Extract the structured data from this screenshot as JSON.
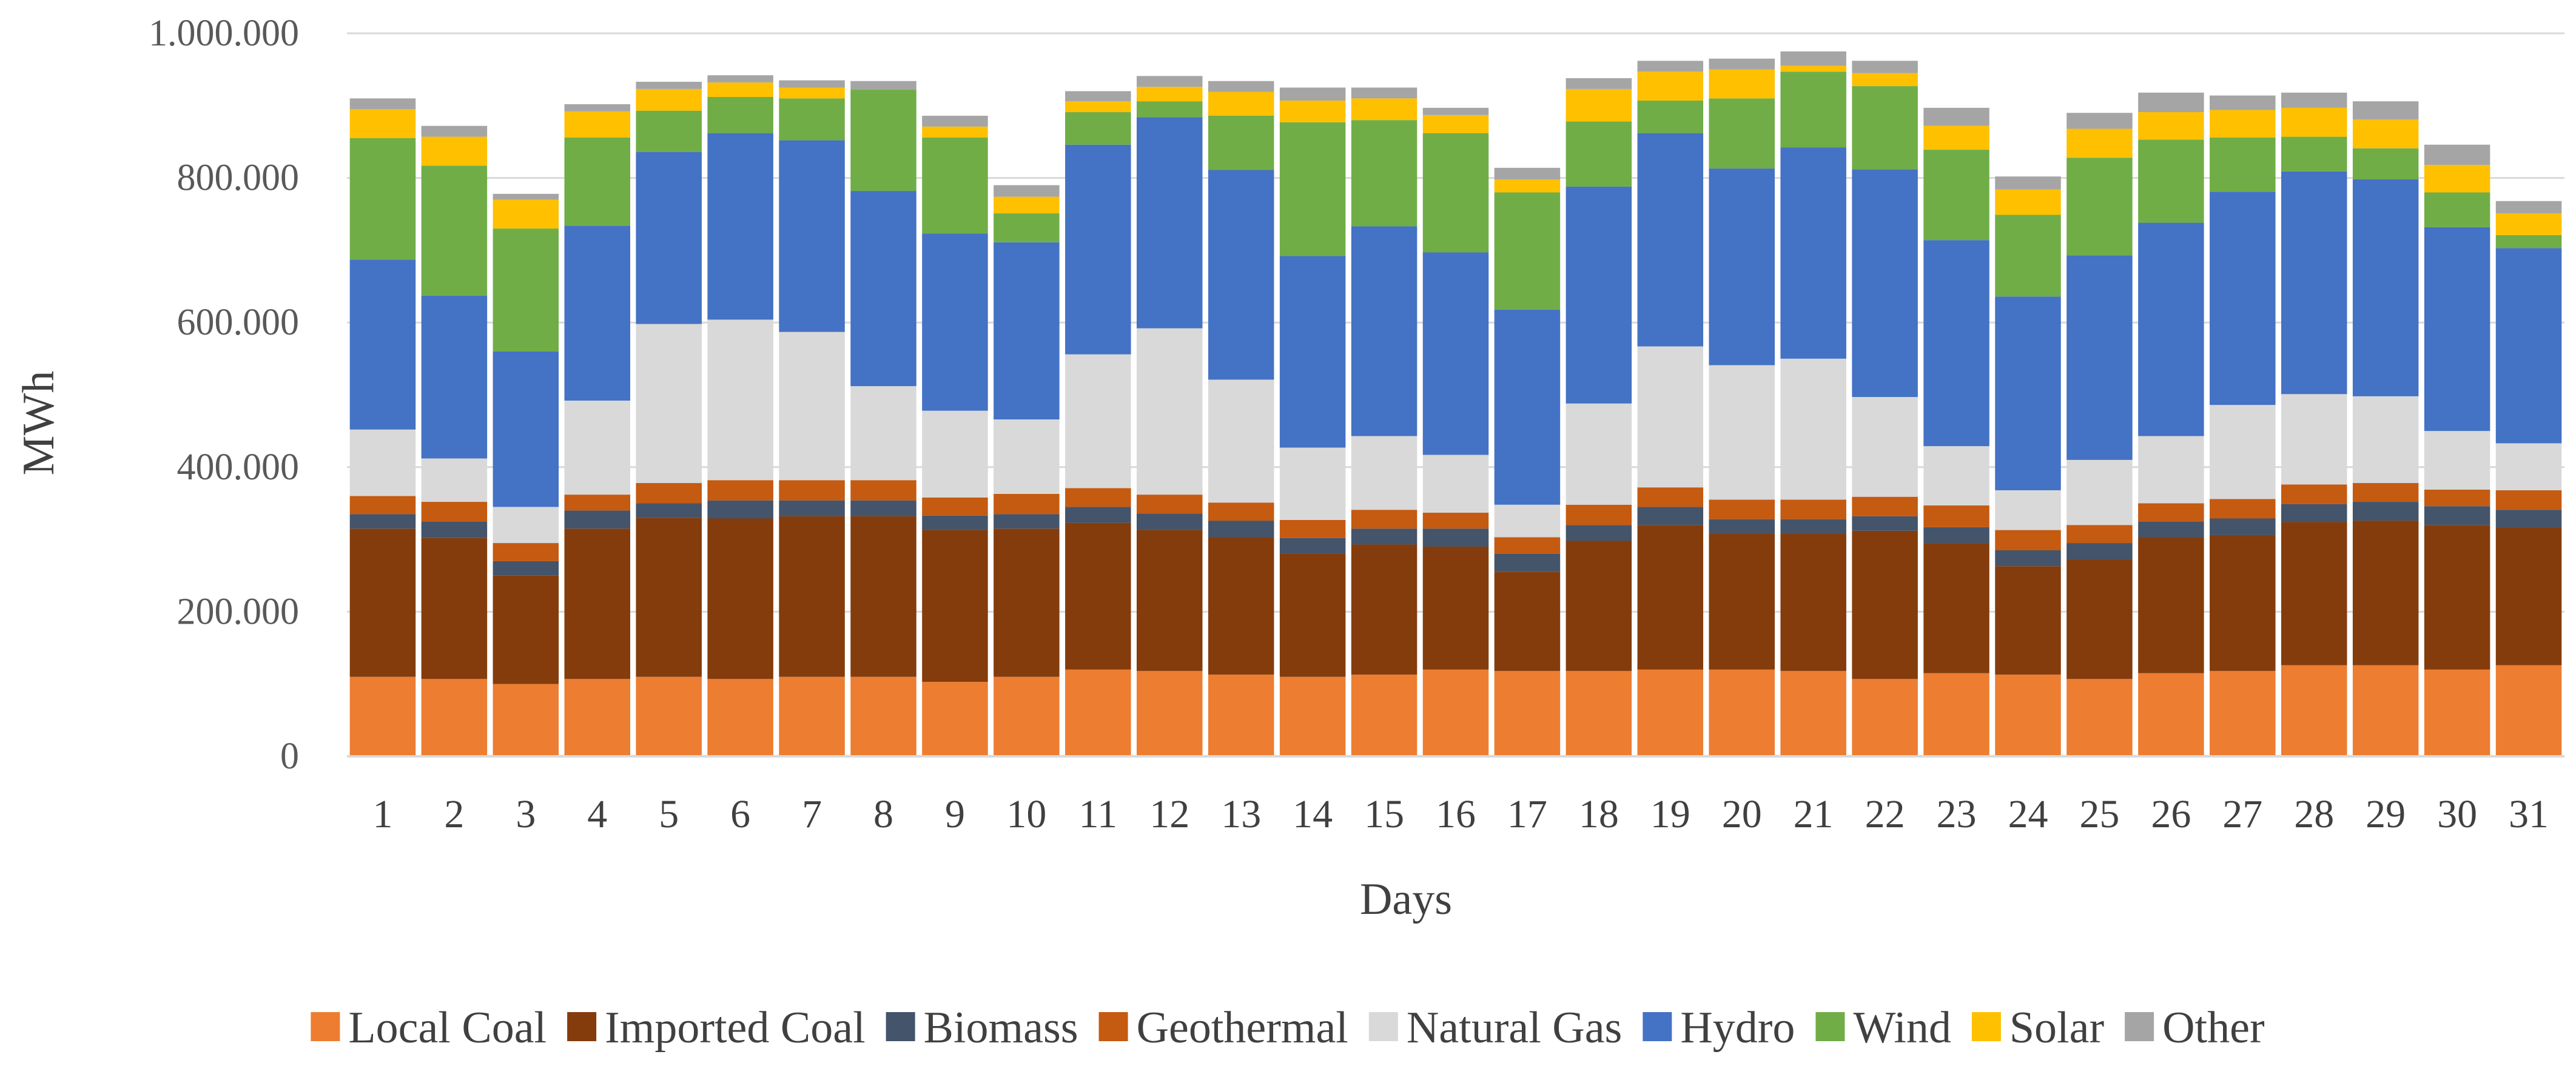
{
  "chart_data": {
    "type": "bar",
    "stacked": true,
    "title": "",
    "xlabel": "Days",
    "ylabel": "MWh",
    "ylim": [
      0,
      1000000
    ],
    "yticks": [
      0,
      200000,
      400000,
      600000,
      800000,
      1000000
    ],
    "ytick_labels": [
      "0",
      "200.000",
      "400.000",
      "600.000",
      "800.000",
      "1.000.000"
    ],
    "grid": true,
    "legend_position": "bottom",
    "categories": [
      "1",
      "2",
      "3",
      "4",
      "5",
      "6",
      "7",
      "8",
      "9",
      "10",
      "11",
      "12",
      "13",
      "14",
      "15",
      "16",
      "17",
      "18",
      "19",
      "20",
      "21",
      "22",
      "23",
      "24",
      "25",
      "26",
      "27",
      "28",
      "29",
      "30",
      "31"
    ],
    "series": [
      {
        "name": "Local Coal",
        "color": "#ED7D31",
        "values": [
          110000,
          107000,
          100000,
          107000,
          110000,
          107000,
          110000,
          110000,
          103000,
          110000,
          120000,
          118000,
          113000,
          110000,
          113000,
          120000,
          118000,
          118000,
          120000,
          120000,
          118000,
          107000,
          115000,
          113000,
          107000,
          115000,
          118000,
          126000,
          126000,
          120000,
          126000
        ]
      },
      {
        "name": "Imported Coal",
        "color": "#843C0C",
        "values": [
          205000,
          195000,
          150000,
          208000,
          220000,
          222000,
          222000,
          222000,
          210000,
          205000,
          203000,
          195000,
          190000,
          170000,
          180000,
          170000,
          137000,
          180000,
          200000,
          188000,
          190000,
          205000,
          180000,
          150000,
          165000,
          188000,
          188000,
          198000,
          200000,
          200000,
          190000
        ]
      },
      {
        "name": "Biomass",
        "color": "#44546A",
        "values": [
          20000,
          23000,
          20000,
          25000,
          20000,
          25000,
          22000,
          22000,
          20000,
          20000,
          22000,
          23000,
          23000,
          22000,
          22000,
          25000,
          25000,
          22000,
          25000,
          20000,
          20000,
          20000,
          22000,
          22000,
          23000,
          22000,
          23000,
          25000,
          26000,
          26000,
          25000
        ]
      },
      {
        "name": "Geothermal",
        "color": "#C55A11",
        "values": [
          25000,
          27000,
          25000,
          22000,
          28000,
          28000,
          28000,
          28000,
          25000,
          28000,
          26000,
          26000,
          25000,
          25000,
          26000,
          22000,
          23000,
          28000,
          27000,
          27000,
          27000,
          27000,
          30000,
          28000,
          25000,
          25000,
          27000,
          27000,
          26000,
          23000,
          27000
        ]
      },
      {
        "name": "Natural Gas",
        "color": "#D9D9D9",
        "values": [
          92000,
          60000,
          50000,
          130000,
          220000,
          222000,
          205000,
          130000,
          120000,
          103000,
          185000,
          230000,
          170000,
          100000,
          102000,
          80000,
          45000,
          140000,
          195000,
          186000,
          195000,
          138000,
          82000,
          55000,
          90000,
          93000,
          130000,
          125000,
          120000,
          81000,
          65000
        ]
      },
      {
        "name": "Hydro",
        "color": "#4472C4",
        "values": [
          235000,
          225000,
          215000,
          242000,
          238000,
          258000,
          265000,
          270000,
          245000,
          245000,
          290000,
          292000,
          290000,
          265000,
          290000,
          280000,
          270000,
          300000,
          295000,
          272000,
          292000,
          315000,
          285000,
          268000,
          283000,
          295000,
          295000,
          308000,
          300000,
          282000,
          270000
        ]
      },
      {
        "name": "Wind",
        "color": "#70AD47",
        "values": [
          168000,
          180000,
          170000,
          122000,
          57000,
          50000,
          58000,
          140000,
          133000,
          40000,
          45000,
          22000,
          75000,
          185000,
          147000,
          165000,
          162000,
          90000,
          45000,
          97000,
          105000,
          115000,
          125000,
          113000,
          135000,
          115000,
          75000,
          48000,
          43000,
          48000,
          18000
        ]
      },
      {
        "name": "Solar",
        "color": "#FFC000",
        "values": [
          40000,
          40000,
          40000,
          36000,
          30000,
          20000,
          15000,
          0,
          15000,
          23000,
          15000,
          20000,
          33000,
          30000,
          30000,
          25000,
          18000,
          45000,
          40000,
          40000,
          8000,
          18000,
          33000,
          35000,
          40000,
          38000,
          38000,
          40000,
          40000,
          38000,
          30000
        ]
      },
      {
        "name": "Other",
        "color": "#A5A5A5",
        "values": [
          15000,
          15000,
          8000,
          10000,
          10000,
          10000,
          10000,
          12000,
          15000,
          16000,
          14000,
          15000,
          15000,
          18000,
          15000,
          10000,
          16000,
          15000,
          15000,
          15000,
          20000,
          17000,
          25000,
          18000,
          22000,
          27000,
          20000,
          21000,
          25000,
          28000,
          17000
        ]
      }
    ]
  }
}
